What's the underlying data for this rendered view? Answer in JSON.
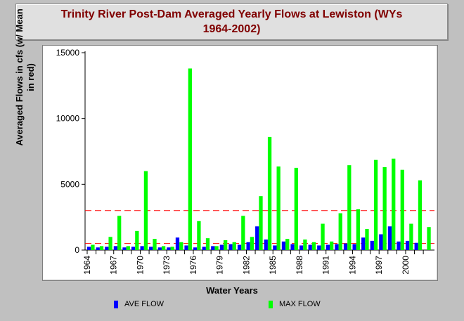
{
  "chart_data": {
    "type": "bar",
    "title_line1": "Trinity River Post-Dam Averaged Yearly Flows at Lewiston (WYs",
    "title_line2": "1964-2002)",
    "xlabel": "Water Years",
    "ylabel_line1": "Averaged Flows in cfs (w/ Mean",
    "ylabel_line2": "in red)",
    "categories": [
      "1964",
      "1965",
      "1966",
      "1967",
      "1968",
      "1969",
      "1970",
      "1971",
      "1972",
      "1973",
      "1974",
      "1975",
      "1976",
      "1977",
      "1978",
      "1979",
      "1980",
      "1981",
      "1982",
      "1983",
      "1984",
      "1985",
      "1986",
      "1987",
      "1988",
      "1989",
      "1990",
      "1991",
      "1992",
      "1993",
      "1994",
      "1995",
      "1996",
      "1997",
      "1998",
      "1999",
      "2000",
      "2001",
      "2002"
    ],
    "tick_labels": [
      "1964",
      "1967",
      "1970",
      "1973",
      "1976",
      "1979",
      "1982",
      "1985",
      "1988",
      "1991",
      "1994",
      "1997",
      "2000"
    ],
    "ylim": [
      0,
      15000
    ],
    "yticks": [
      0,
      5000,
      10000,
      15000
    ],
    "series": [
      {
        "name": "AVE FLOW",
        "color": "#0000ff",
        "values": [
          250,
          200,
          250,
          300,
          200,
          250,
          300,
          250,
          200,
          200,
          950,
          350,
          200,
          250,
          300,
          400,
          450,
          400,
          600,
          1800,
          800,
          350,
          650,
          450,
          350,
          400,
          350,
          400,
          450,
          500,
          450,
          950,
          700,
          1200,
          1800,
          650,
          700,
          550,
          0
        ]
      },
      {
        "name": "MAX FLOW",
        "color": "#00ff00",
        "values": [
          400,
          300,
          1000,
          2600,
          300,
          1450,
          6000,
          850,
          300,
          250,
          600,
          13800,
          2200,
          900,
          300,
          750,
          600,
          2600,
          1000,
          4100,
          8600,
          6350,
          850,
          6250,
          800,
          600,
          2000,
          650,
          2800,
          6450,
          3100,
          1600,
          6850,
          6300,
          6950,
          6100,
          2000,
          5300,
          1750
        ]
      }
    ],
    "reference_lines": [
      {
        "value": 3000,
        "color": "#ff0000",
        "style": "dashed"
      },
      {
        "value": 500,
        "color": "#ff0000",
        "style": "dashed"
      }
    ],
    "legend_position": "bottom"
  }
}
